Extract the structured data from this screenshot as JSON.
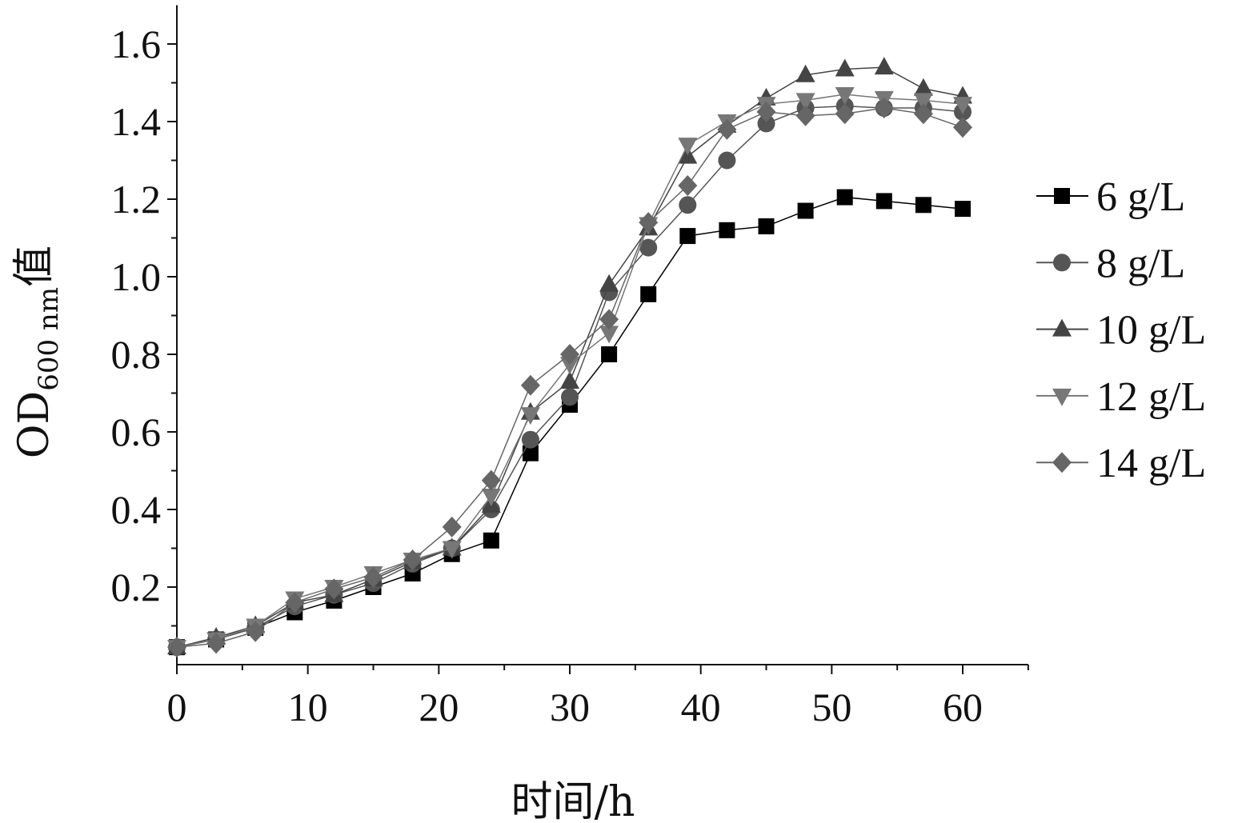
{
  "chart_data": {
    "type": "line",
    "title": "",
    "xlabel": "时间/h",
    "ylabel": {
      "main": "OD",
      "subscript": "600 nm",
      "suffix": "值"
    },
    "xlim": [
      0,
      65
    ],
    "ylim": [
      0,
      1.7
    ],
    "x_ticks": [
      0,
      10,
      20,
      30,
      40,
      50,
      60
    ],
    "x_tick_labels": [
      "0",
      "10",
      "20",
      "30",
      "40",
      "50",
      "60"
    ],
    "y_ticks": [
      0.2,
      0.4,
      0.6,
      0.8,
      1.0,
      1.2,
      1.4,
      1.6
    ],
    "y_tick_labels": [
      "0.2",
      "0.4",
      "0.6",
      "0.8",
      "1.0",
      "1.2",
      "1.4",
      "1.6"
    ],
    "grid": false,
    "legend_position": "right",
    "x": [
      0,
      3,
      6,
      9,
      12,
      15,
      18,
      21,
      24,
      27,
      30,
      33,
      36,
      39,
      42,
      45,
      48,
      51,
      54,
      57,
      60
    ],
    "series": [
      {
        "name": "6 g/L",
        "marker": "square",
        "color": "#000000",
        "values": [
          0.045,
          0.065,
          0.095,
          0.135,
          0.165,
          0.2,
          0.235,
          0.285,
          0.32,
          0.545,
          0.67,
          0.8,
          0.955,
          1.105,
          1.12,
          1.13,
          1.17,
          1.205,
          1.195,
          1.185,
          1.175
        ]
      },
      {
        "name": "8 g/L",
        "marker": "circle",
        "color": "#555555",
        "values": [
          0.045,
          0.065,
          0.095,
          0.15,
          0.18,
          0.21,
          0.26,
          0.3,
          0.4,
          0.58,
          0.69,
          0.96,
          1.075,
          1.185,
          1.3,
          1.395,
          1.435,
          1.44,
          1.435,
          1.435,
          1.425
        ]
      },
      {
        "name": "10 g/L",
        "marker": "triangle-up",
        "color": "#444444",
        "values": [
          0.045,
          0.07,
          0.1,
          0.16,
          0.18,
          0.22,
          0.265,
          0.3,
          0.41,
          0.65,
          0.73,
          0.98,
          1.125,
          1.31,
          1.39,
          1.46,
          1.52,
          1.535,
          1.54,
          1.485,
          1.465
        ]
      },
      {
        "name": "12 g/L",
        "marker": "triangle-down",
        "color": "#777777",
        "values": [
          0.045,
          0.065,
          0.1,
          0.17,
          0.2,
          0.235,
          0.27,
          0.3,
          0.435,
          0.645,
          0.775,
          0.855,
          1.135,
          1.34,
          1.4,
          1.445,
          1.455,
          1.47,
          1.46,
          1.455,
          1.445
        ]
      },
      {
        "name": "14 g/L",
        "marker": "diamond",
        "color": "#666666",
        "values": [
          0.045,
          0.055,
          0.085,
          0.16,
          0.195,
          0.225,
          0.27,
          0.355,
          0.475,
          0.72,
          0.8,
          0.89,
          1.14,
          1.235,
          1.38,
          1.425,
          1.415,
          1.42,
          1.435,
          1.42,
          1.385
        ]
      }
    ]
  }
}
